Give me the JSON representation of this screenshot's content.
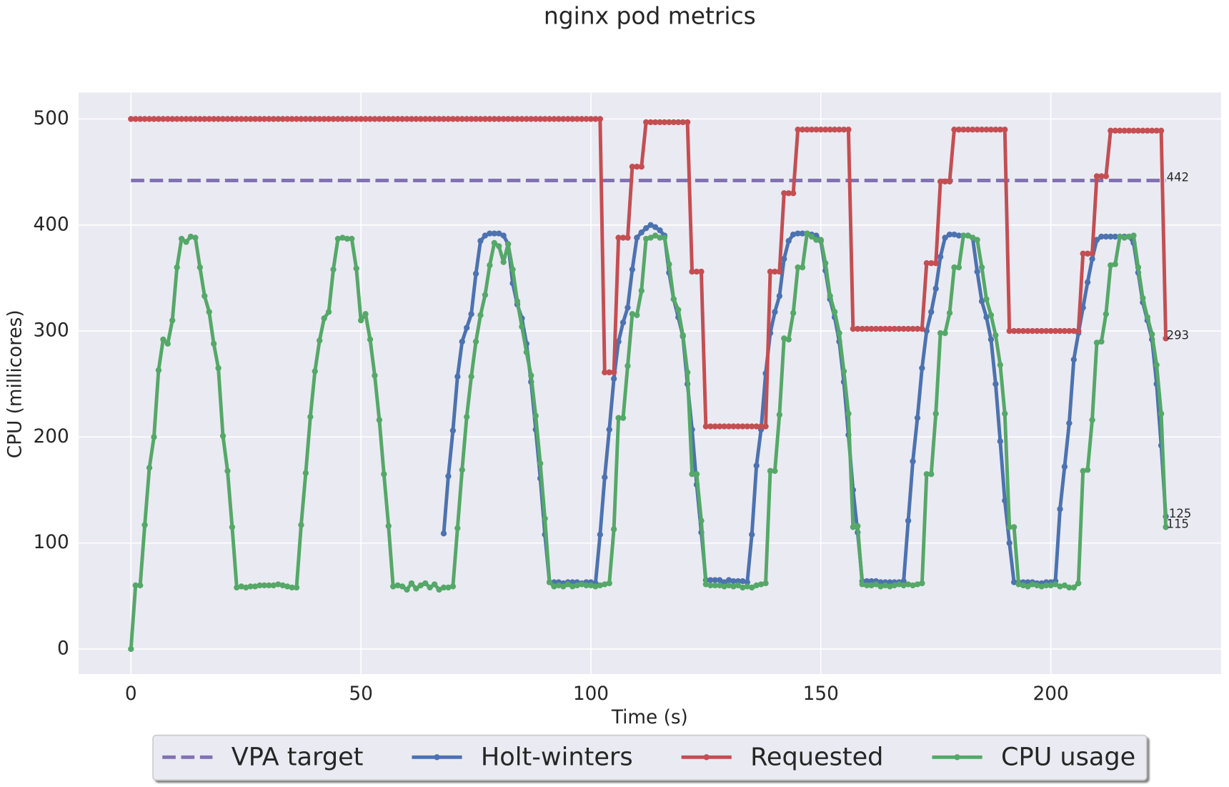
{
  "chart_data": {
    "type": "line",
    "title": "nginx pod metrics",
    "x_label": "Time (s)",
    "y_label": "CPU (millicores)",
    "xlim": [
      -11.4,
      237
    ],
    "ylim": [
      -23.7,
      525
    ],
    "xticks": [
      0,
      50,
      100,
      150,
      200
    ],
    "yticks": [
      0,
      100,
      200,
      300,
      400,
      500
    ],
    "grid": true,
    "legend": "bottom",
    "x": [
      0,
      1,
      2,
      3,
      4,
      5,
      6,
      7,
      8,
      9,
      10,
      11,
      12,
      13,
      14,
      15,
      16,
      17,
      18,
      19,
      20,
      21,
      22,
      23,
      24,
      25,
      26,
      27,
      28,
      29,
      30,
      31,
      32,
      33,
      34,
      35,
      36,
      37,
      38,
      39,
      40,
      41,
      42,
      43,
      44,
      45,
      46,
      47,
      48,
      49,
      50,
      51,
      52,
      53,
      54,
      55,
      56,
      57,
      58,
      59,
      60,
      61,
      62,
      63,
      64,
      65,
      66,
      67,
      68,
      69,
      70,
      71,
      72,
      73,
      74,
      75,
      76,
      77,
      78,
      79,
      80,
      81,
      82,
      83,
      84,
      85,
      86,
      87,
      88,
      89,
      90,
      91,
      92,
      93,
      94,
      95,
      96,
      97,
      98,
      99,
      100,
      101,
      102,
      103,
      104,
      105,
      106,
      107,
      108,
      109,
      110,
      111,
      112,
      113,
      114,
      115,
      116,
      117,
      118,
      119,
      120,
      121,
      122,
      123,
      124,
      125,
      126,
      127,
      128,
      129,
      130,
      131,
      132,
      133,
      134,
      135,
      136,
      137,
      138,
      139,
      140,
      141,
      142,
      143,
      144,
      145,
      146,
      147,
      148,
      149,
      150,
      151,
      152,
      153,
      154,
      155,
      156,
      157,
      158,
      159,
      160,
      161,
      162,
      163,
      164,
      165,
      166,
      167,
      168,
      169,
      170,
      171,
      172,
      173,
      174,
      175,
      176,
      177,
      178,
      179,
      180,
      181,
      182,
      183,
      184,
      185,
      186,
      187,
      188,
      189,
      190,
      191,
      192,
      193,
      194,
      195,
      196,
      197,
      198,
      199,
      200,
      201,
      202,
      203,
      204,
      205,
      206,
      207,
      208,
      209,
      210,
      211,
      212,
      213,
      214,
      215,
      216,
      217,
      218,
      219,
      220,
      221,
      222,
      223,
      224,
      225
    ],
    "series": [
      {
        "name": "VPA target",
        "color": "#8172b2",
        "linestyle": "dashed",
        "marker": false,
        "x": [
          0,
          225
        ],
        "values": [
          442,
          442
        ]
      },
      {
        "name": "Holt-winters",
        "color": "#4c72b0",
        "linestyle": "solid",
        "marker": true,
        "values": [
          null,
          null,
          null,
          null,
          null,
          null,
          null,
          null,
          null,
          null,
          null,
          null,
          null,
          null,
          null,
          null,
          null,
          null,
          null,
          null,
          null,
          null,
          null,
          null,
          null,
          null,
          null,
          null,
          null,
          null,
          null,
          null,
          null,
          null,
          null,
          null,
          null,
          null,
          null,
          null,
          null,
          null,
          null,
          null,
          null,
          null,
          null,
          null,
          null,
          null,
          null,
          null,
          null,
          null,
          null,
          null,
          null,
          null,
          null,
          null,
          null,
          null,
          null,
          null,
          null,
          null,
          null,
          null,
          109,
          163,
          206,
          257,
          290,
          303,
          316,
          354,
          385,
          390,
          392,
          392,
          392,
          390,
          382,
          345,
          325,
          312,
          288,
          252,
          207,
          161,
          108,
          63,
          63,
          63,
          62,
          63,
          63,
          63,
          62,
          63,
          63,
          62,
          108,
          162,
          207,
          255,
          290,
          308,
          322,
          358,
          388,
          393,
          397,
          400,
          398,
          395,
          390,
          355,
          330,
          313,
          295,
          250,
          207,
          155,
          110,
          65,
          65,
          65,
          65,
          63,
          65,
          64,
          64,
          64,
          63,
          108,
          173,
          207,
          260,
          298,
          318,
          333,
          368,
          385,
          391,
          392,
          392,
          392,
          391,
          390,
          385,
          357,
          330,
          313,
          290,
          252,
          202,
          150,
          110,
          64,
          64,
          64,
          64,
          63,
          63,
          63,
          63,
          63,
          64,
          121,
          177,
          218,
          265,
          300,
          318,
          340,
          370,
          388,
          391,
          391,
          390,
          390,
          390,
          388,
          356,
          328,
          313,
          292,
          250,
          196,
          140,
          100,
          63,
          63,
          63,
          63,
          63,
          62,
          62,
          63,
          63,
          64,
          132,
          172,
          213,
          273,
          298,
          322,
          346,
          368,
          386,
          389,
          389,
          389,
          389,
          389,
          389,
          389,
          383,
          355,
          327,
          310,
          292,
          250,
          192,
          125
        ]
      },
      {
        "name": "Requested",
        "color": "#c44e52",
        "linestyle": "solid",
        "marker": true,
        "values": [
          500,
          500,
          500,
          500,
          500,
          500,
          500,
          500,
          500,
          500,
          500,
          500,
          500,
          500,
          500,
          500,
          500,
          500,
          500,
          500,
          500,
          500,
          500,
          500,
          500,
          500,
          500,
          500,
          500,
          500,
          500,
          500,
          500,
          500,
          500,
          500,
          500,
          500,
          500,
          500,
          500,
          500,
          500,
          500,
          500,
          500,
          500,
          500,
          500,
          500,
          500,
          500,
          500,
          500,
          500,
          500,
          500,
          500,
          500,
          500,
          500,
          500,
          500,
          500,
          500,
          500,
          500,
          500,
          500,
          500,
          500,
          500,
          500,
          500,
          500,
          500,
          500,
          500,
          500,
          500,
          500,
          500,
          500,
          500,
          500,
          500,
          500,
          500,
          500,
          500,
          500,
          500,
          500,
          500,
          500,
          500,
          500,
          500,
          500,
          500,
          500,
          500,
          500,
          261,
          261,
          261,
          388,
          388,
          388,
          455,
          455,
          455,
          497,
          497,
          497,
          497,
          497,
          497,
          497,
          497,
          497,
          497,
          356,
          356,
          356,
          210,
          210,
          210,
          210,
          210,
          210,
          210,
          210,
          210,
          210,
          210,
          210,
          210,
          210,
          356,
          356,
          356,
          430,
          430,
          430,
          490,
          490,
          490,
          490,
          490,
          490,
          490,
          490,
          490,
          490,
          490,
          490,
          302,
          302,
          302,
          302,
          302,
          302,
          302,
          302,
          302,
          302,
          302,
          302,
          302,
          302,
          302,
          302,
          364,
          364,
          364,
          441,
          441,
          441,
          490,
          490,
          490,
          490,
          490,
          490,
          490,
          490,
          490,
          490,
          490,
          490,
          300,
          300,
          300,
          300,
          300,
          300,
          300,
          300,
          300,
          300,
          300,
          300,
          300,
          300,
          300,
          300,
          373,
          373,
          373,
          446,
          446,
          446,
          489,
          489,
          489,
          489,
          489,
          489,
          489,
          489,
          489,
          489,
          489,
          489,
          293
        ]
      },
      {
        "name": "CPU usage",
        "color": "#55a868",
        "linestyle": "solid",
        "marker": true,
        "values": [
          0,
          60,
          60,
          117,
          171,
          200,
          263,
          292,
          288,
          310,
          360,
          387,
          384,
          389,
          388,
          360,
          333,
          318,
          288,
          265,
          201,
          168,
          115,
          58,
          59,
          58,
          59,
          59,
          60,
          60,
          60,
          60,
          61,
          60,
          59,
          58,
          58,
          117,
          166,
          219,
          262,
          291,
          312,
          318,
          358,
          387,
          388,
          387,
          387,
          359,
          310,
          316,
          292,
          258,
          216,
          165,
          116,
          59,
          60,
          59,
          56,
          62,
          57,
          60,
          62,
          58,
          61,
          56,
          58,
          58,
          59,
          114,
          169,
          219,
          257,
          290,
          315,
          334,
          362,
          383,
          380,
          365,
          382,
          358,
          328,
          304,
          280,
          258,
          220,
          175,
          123,
          63,
          59,
          60,
          59,
          61,
          59,
          60,
          61,
          60,
          60,
          59,
          60,
          61,
          62,
          113,
          218,
          218,
          267,
          316,
          315,
          338,
          387,
          388,
          390,
          388,
          388,
          363,
          330,
          320,
          296,
          261,
          165,
          165,
          121,
          61,
          60,
          60,
          60,
          59,
          60,
          59,
          60,
          58,
          59,
          58,
          60,
          61,
          62,
          168,
          168,
          221,
          293,
          292,
          317,
          360,
          360,
          392,
          389,
          386,
          386,
          364,
          333,
          318,
          298,
          262,
          222,
          115,
          116,
          61,
          60,
          60,
          61,
          59,
          60,
          59,
          60,
          61,
          60,
          61,
          60,
          61,
          62,
          165,
          165,
          222,
          298,
          298,
          317,
          360,
          360,
          390,
          390,
          388,
          386,
          360,
          330,
          315,
          296,
          268,
          222,
          115,
          115,
          61,
          60,
          59,
          61,
          60,
          59,
          60,
          60,
          61,
          59,
          60,
          58,
          58,
          62,
          168,
          169,
          216,
          289,
          290,
          316,
          362,
          363,
          389,
          388,
          389,
          390,
          360,
          331,
          313,
          297,
          268,
          222,
          115
        ]
      }
    ]
  }
}
